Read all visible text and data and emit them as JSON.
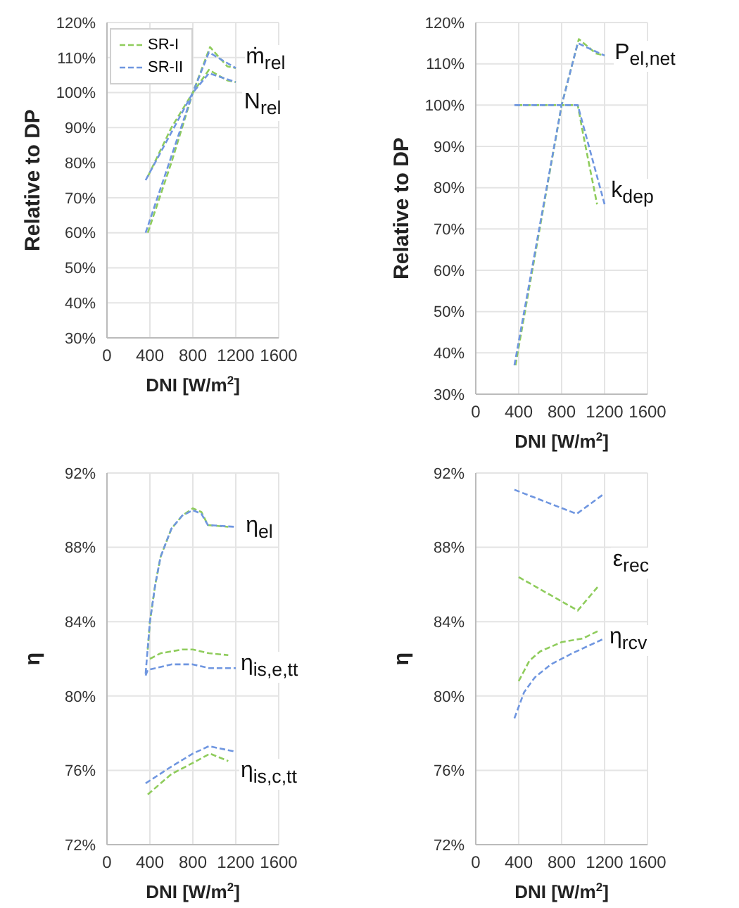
{
  "chart_data": [
    {
      "type": "line",
      "xlabel": "DNI [W/m$^{2}$]",
      "ylabel": "Relative to DP",
      "xlim": [
        0,
        1600
      ],
      "xticks": [
        0,
        400,
        800,
        1200,
        1600
      ],
      "ylim": [
        30,
        120
      ],
      "yticks": [
        {
          "value": 30,
          "label": "30%"
        },
        {
          "value": 40,
          "label": "40%"
        },
        {
          "value": 50,
          "label": "50%"
        },
        {
          "value": 60,
          "label": "60%"
        },
        {
          "value": 70,
          "label": "70%"
        },
        {
          "value": 80,
          "label": "80%"
        },
        {
          "value": 90,
          "label": "90%"
        },
        {
          "value": 100,
          "label": "100%"
        },
        {
          "value": 110,
          "label": "110%"
        },
        {
          "value": 120,
          "label": "120%"
        }
      ],
      "grid": true,
      "line_style": "dashed",
      "legend": "top left",
      "series": [
        {
          "name": "SR-I",
          "color": "#8fcc5c",
          "x": [
            380,
            600,
            800,
            960,
            1120,
            1200
          ],
          "values": [
            60,
            80,
            100,
            113,
            107.5,
            107
          ]
        },
        {
          "name": "SR-II",
          "color": "#6f96e0",
          "x": [
            360,
            800,
            950,
            1200
          ],
          "values": [
            60,
            100,
            111.5,
            107
          ]
        },
        {
          "color": "#8fcc5c",
          "x": [
            380,
            600,
            800,
            950,
            1120,
            1200
          ],
          "values": [
            76,
            90,
            100,
            106.5,
            103.5,
            103
          ]
        },
        {
          "color": "#6f96e0",
          "x": [
            360,
            800,
            950,
            1200
          ],
          "values": [
            75,
            100,
            105.5,
            103
          ]
        }
      ],
      "annotations": [
        "ṁ$_{rel}$",
        "N$_{rel}$"
      ]
    },
    {
      "type": "line",
      "xlabel": "DNI [W/m$^{2}$]",
      "ylabel": "Relative to DP",
      "xlim": [
        0,
        1600
      ],
      "xticks": [
        0,
        400,
        800,
        1200,
        1600
      ],
      "ylim": [
        30,
        120
      ],
      "yticks": [
        {
          "value": 30,
          "label": "30%"
        },
        {
          "value": 40,
          "label": "40%"
        },
        {
          "value": 50,
          "label": "50%"
        },
        {
          "value": 60,
          "label": "60%"
        },
        {
          "value": 70,
          "label": "70%"
        },
        {
          "value": 80,
          "label": "80%"
        },
        {
          "value": 90,
          "label": "90%"
        },
        {
          "value": 100,
          "label": "100%"
        },
        {
          "value": 110,
          "label": "110%"
        },
        {
          "value": 120,
          "label": "120%"
        }
      ],
      "grid": true,
      "line_style": "dashed",
      "series": [
        {
          "color": "#8fcc5c",
          "x": [
            370,
            800,
            960,
            1120,
            1200
          ],
          "values": [
            37,
            100,
            116,
            112.5,
            112
          ]
        },
        {
          "color": "#6f96e0",
          "x": [
            360,
            800,
            950,
            1200
          ],
          "values": [
            37,
            100,
            115,
            112
          ]
        },
        {
          "color": "#8fcc5c",
          "x": [
            380,
            950,
            1000,
            1130
          ],
          "values": [
            100,
            100,
            93,
            76
          ]
        },
        {
          "color": "#6f96e0",
          "x": [
            360,
            950,
            1200
          ],
          "values": [
            100,
            100,
            76
          ]
        }
      ],
      "annotations": [
        "P$_{el,net}$",
        "k$_{dep}$"
      ]
    },
    {
      "type": "line",
      "xlabel": "DNI [W/m$^{2}$]",
      "ylabel": "η",
      "xlim": [
        0,
        1600
      ],
      "xticks": [
        0,
        400,
        800,
        1200,
        1600
      ],
      "ylim": [
        72,
        92
      ],
      "yticks": [
        {
          "value": 72,
          "label": "72%"
        },
        {
          "value": 76,
          "label": "76%"
        },
        {
          "value": 80,
          "label": "80%"
        },
        {
          "value": 84,
          "label": "84%"
        },
        {
          "value": 88,
          "label": "88%"
        },
        {
          "value": 92,
          "label": "92%"
        }
      ],
      "grid": true,
      "line_style": "dashed",
      "series": [
        {
          "color": "#8fcc5c",
          "x": [
            380,
            400,
            450,
            500,
            600,
            700,
            800,
            880,
            940,
            1130
          ],
          "values": [
            82.5,
            84,
            86,
            87.5,
            89,
            89.7,
            90.1,
            89.9,
            89.2,
            89.1
          ]
        },
        {
          "color": "#6f96e0",
          "x": [
            360,
            400,
            450,
            500,
            600,
            700,
            800,
            880,
            940,
            1200
          ],
          "values": [
            81.2,
            84,
            86,
            87.5,
            89,
            89.7,
            90,
            89.8,
            89.2,
            89.1
          ]
        },
        {
          "color": "#8fcc5c",
          "x": [
            400,
            500,
            700,
            800,
            950,
            1130
          ],
          "values": [
            82,
            82.3,
            82.5,
            82.5,
            82.3,
            82.2
          ]
        },
        {
          "color": "#6f96e0",
          "x": [
            360,
            380,
            600,
            800,
            950,
            1200
          ],
          "values": [
            81.1,
            81.4,
            81.7,
            81.7,
            81.5,
            81.5
          ]
        },
        {
          "color": "#8fcc5c",
          "x": [
            380,
            600,
            800,
            960,
            1130
          ],
          "values": [
            74.7,
            75.8,
            76.4,
            76.9,
            76.5
          ]
        },
        {
          "color": "#6f96e0",
          "x": [
            360,
            600,
            800,
            950,
            1200
          ],
          "values": [
            75.3,
            76.2,
            76.9,
            77.3,
            77
          ]
        }
      ],
      "annotations": [
        "η$_{el}$",
        "η$_{is,e,tt}$",
        "η$_{is,c,tt}$"
      ]
    },
    {
      "type": "line",
      "xlabel": "DNI [W/m$^{2}$]",
      "ylabel": "η",
      "xlim": [
        0,
        1600
      ],
      "xticks": [
        0,
        400,
        800,
        1200,
        1600
      ],
      "ylim": [
        72,
        92
      ],
      "yticks": [
        {
          "value": 72,
          "label": "72%"
        },
        {
          "value": 76,
          "label": "76%"
        },
        {
          "value": 80,
          "label": "80%"
        },
        {
          "value": 84,
          "label": "84%"
        },
        {
          "value": 88,
          "label": "88%"
        },
        {
          "value": 92,
          "label": "92%"
        }
      ],
      "grid": true,
      "line_style": "dashed",
      "series": [
        {
          "color": "#6f96e0",
          "x": [
            360,
            940,
            1200
          ],
          "values": [
            91.1,
            89.8,
            90.9
          ]
        },
        {
          "color": "#8fcc5c",
          "x": [
            400,
            950,
            1140
          ],
          "values": [
            86.4,
            84.6,
            85.9
          ]
        },
        {
          "color": "#8fcc5c",
          "x": [
            400,
            500,
            600,
            800,
            1000,
            1140
          ],
          "values": [
            80.8,
            81.9,
            82.4,
            82.9,
            83.1,
            83.5
          ]
        },
        {
          "color": "#6f96e0",
          "x": [
            360,
            450,
            550,
            700,
            900,
            1200
          ],
          "values": [
            78.8,
            80.2,
            81,
            81.7,
            82.3,
            83.1
          ]
        }
      ],
      "annotations": [
        "ε$_{rec}$",
        "η$_{rcv}$"
      ]
    }
  ]
}
